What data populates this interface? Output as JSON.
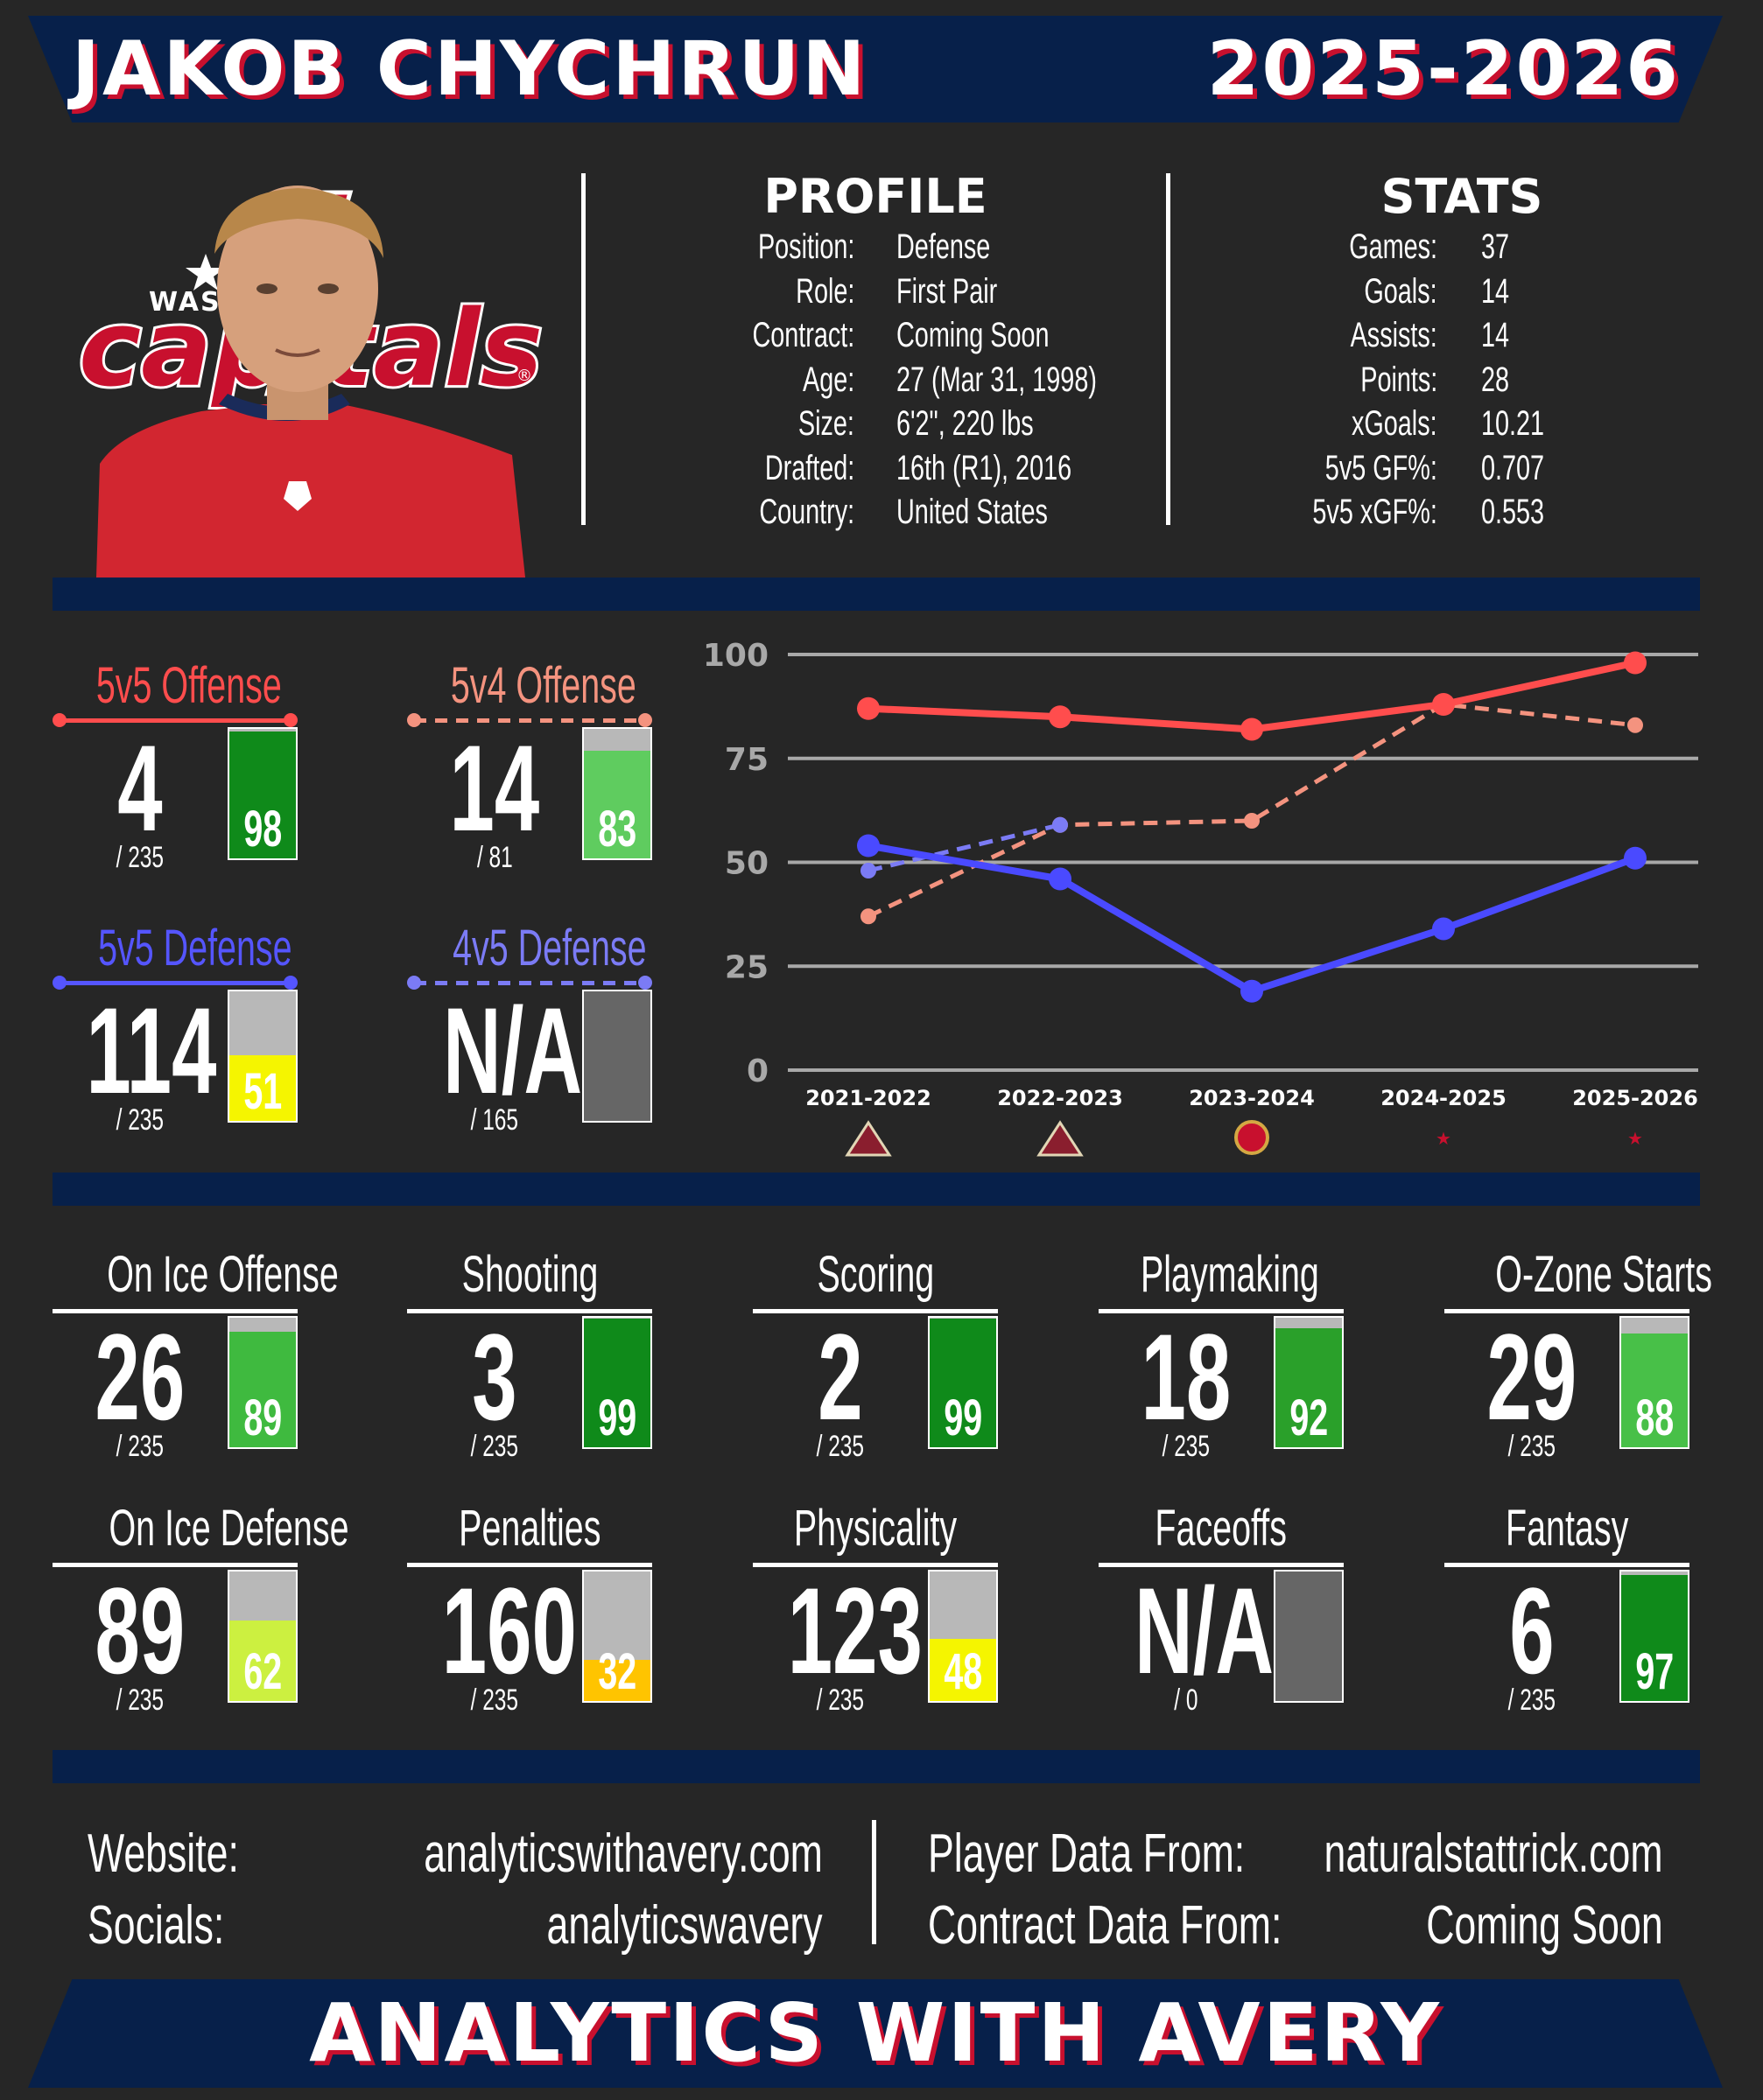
{
  "header": {
    "player_name": "JAKOB CHYCHRUN",
    "season": "2025-2026"
  },
  "photo": {
    "team_logo": "capitals-logo",
    "player": "player-headshot"
  },
  "profile": {
    "heading": "PROFILE",
    "rows": [
      {
        "label": "Position:",
        "value": "Defense"
      },
      {
        "label": "Role:",
        "value": "First Pair"
      },
      {
        "label": "Contract:",
        "value": "Coming Soon"
      },
      {
        "label": "Age:",
        "value": "27 (Mar 31, 1998)"
      },
      {
        "label": "Size:",
        "value": "6'2\", 220 lbs"
      },
      {
        "label": "Drafted:",
        "value": "16th (R1), 2016"
      },
      {
        "label": "Country:",
        "value": "United States"
      }
    ]
  },
  "stats": {
    "heading": "STATS",
    "rows": [
      {
        "label": "Games:",
        "value": "37"
      },
      {
        "label": "Goals:",
        "value": "14"
      },
      {
        "label": "Assists:",
        "value": "14"
      },
      {
        "label": "Points:",
        "value": "28"
      },
      {
        "label": "xGoals:",
        "value": "10.21"
      },
      {
        "label": "5v5 GF%:",
        "value": "0.707"
      },
      {
        "label": "5v5 xGF%:",
        "value": "0.553"
      }
    ]
  },
  "special_tiles": [
    {
      "title": "5v5 Offense",
      "rank": "4",
      "total": "/ 235",
      "pct": 98,
      "pct_label": "98",
      "color": "#ff4d4d",
      "dashed": false,
      "bar_color": "#0f8a1a"
    },
    {
      "title": "5v4 Offense",
      "rank": "14",
      "total": "/ 81",
      "pct": 83,
      "pct_label": "83",
      "color": "#f4937f",
      "dashed": true,
      "bar_color": "#5fcc5f"
    },
    {
      "title": "5v5 Defense",
      "rank": "114",
      "total": "/ 235",
      "pct": 51,
      "pct_label": "51",
      "color": "#5555ff",
      "dashed": false,
      "bar_color": "#f5f500"
    },
    {
      "title": "4v5 Defense",
      "rank": "N/A",
      "total": "/ 165",
      "pct": null,
      "pct_label": "",
      "color": "#7b7bf5",
      "dashed": true,
      "bar_color": "#666666"
    }
  ],
  "chart_data": {
    "type": "line",
    "categories": [
      "2021-2022",
      "2022-2023",
      "2023-2024",
      "2024-2025",
      "2025-2026"
    ],
    "ylim": [
      0,
      100
    ],
    "yticks": [
      "0",
      "25",
      "50",
      "75",
      "100"
    ],
    "grid": true,
    "team_icons": [
      "coyotes-logo",
      "coyotes-logo",
      "senators-logo",
      "capitals-logo",
      "capitals-logo"
    ],
    "series": [
      {
        "values": [
          87,
          85,
          82,
          88,
          98
        ],
        "color": "#ff4d4d",
        "style": "solid"
      },
      {
        "values": [
          37,
          59,
          60,
          88,
          83
        ],
        "color": "#f4937f",
        "style": "dashed"
      },
      {
        "values": [
          54,
          46,
          19,
          34,
          51
        ],
        "color": "#4a4aff",
        "style": "solid"
      },
      {
        "values": [
          48,
          59,
          null,
          null,
          null
        ],
        "color": "#7b7bf5",
        "style": "dashed"
      }
    ]
  },
  "tiles": [
    {
      "title": "On Ice Offense",
      "rank": "26",
      "total": "/ 235",
      "pct": 89,
      "pct_label": "89",
      "bar_color": "#3fba3f"
    },
    {
      "title": "Shooting",
      "rank": "3",
      "total": "/ 235",
      "pct": 99,
      "pct_label": "99",
      "bar_color": "#0f8a1a"
    },
    {
      "title": "Scoring",
      "rank": "2",
      "total": "/ 235",
      "pct": 99,
      "pct_label": "99",
      "bar_color": "#0f8a1a"
    },
    {
      "title": "Playmaking",
      "rank": "18",
      "total": "/ 235",
      "pct": 92,
      "pct_label": "92",
      "bar_color": "#2aa02a"
    },
    {
      "title": "O-Zone Starts",
      "rank": "29",
      "total": "/ 235",
      "pct": 88,
      "pct_label": "88",
      "bar_color": "#48c048"
    },
    {
      "title": "On Ice Defense",
      "rank": "89",
      "total": "/ 235",
      "pct": 62,
      "pct_label": "62",
      "bar_color": "#ccf040"
    },
    {
      "title": "Penalties",
      "rank": "160",
      "total": "/ 235",
      "pct": 32,
      "pct_label": "32",
      "bar_color": "#ffc400"
    },
    {
      "title": "Physicality",
      "rank": "123",
      "total": "/ 235",
      "pct": 48,
      "pct_label": "48",
      "bar_color": "#f5f500"
    },
    {
      "title": "Faceoffs",
      "rank": "N/A",
      "total": "/ 0",
      "pct": null,
      "pct_label": "",
      "bar_color": "#666666"
    },
    {
      "title": "Fantasy",
      "rank": "6",
      "total": "/ 235",
      "pct": 97,
      "pct_label": "97",
      "bar_color": "#0f8a1a"
    }
  ],
  "footer": {
    "website_label": "Website:",
    "website_value": "analyticswithavery.com",
    "socials_label": "Socials:",
    "socials_value": "analyticswavery",
    "player_data_label": "Player Data From:",
    "player_data_value": "naturalstattrick.com",
    "contract_data_label": "Contract Data From:",
    "contract_data_value": "Coming Soon"
  },
  "brand": {
    "text": "ANALYTICS WITH AVERY"
  }
}
